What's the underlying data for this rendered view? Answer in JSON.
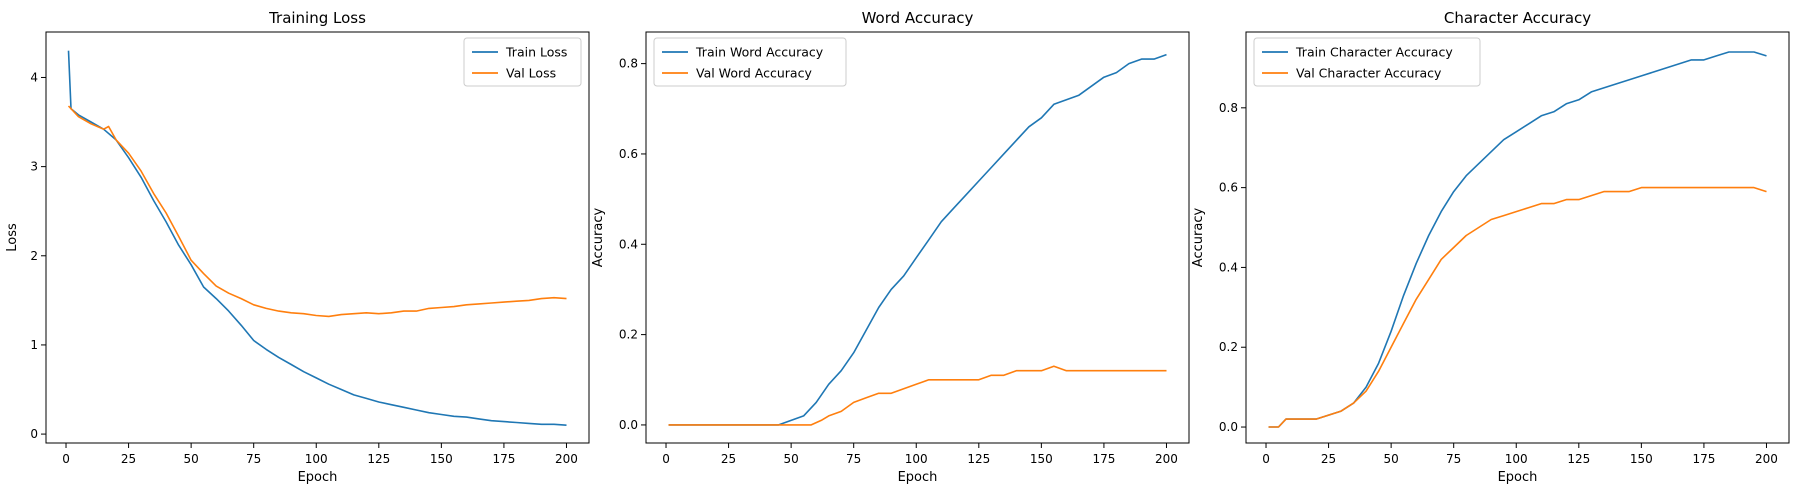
{
  "colors": {
    "train": "#1f77b4",
    "val": "#ff7f0e"
  },
  "chart_data": [
    {
      "type": "line",
      "title": "Training Loss",
      "xlabel": "Epoch",
      "ylabel": "Loss",
      "xlim": [
        -8,
        209
      ],
      "ylim": [
        -0.1,
        4.51
      ],
      "xticks": [
        0,
        25,
        50,
        75,
        100,
        125,
        150,
        175,
        200
      ],
      "yticks": [
        0,
        1,
        2,
        3,
        4
      ],
      "legend": "top-right",
      "series": [
        {
          "name": "Train Loss",
          "color": "#1f77b4",
          "points": [
            [
              1,
              4.3
            ],
            [
              2,
              3.65
            ],
            [
              5,
              3.58
            ],
            [
              10,
              3.5
            ],
            [
              15,
              3.42
            ],
            [
              20,
              3.3
            ],
            [
              25,
              3.1
            ],
            [
              30,
              2.88
            ],
            [
              35,
              2.62
            ],
            [
              40,
              2.38
            ],
            [
              45,
              2.12
            ],
            [
              50,
              1.9
            ],
            [
              55,
              1.65
            ],
            [
              60,
              1.52
            ],
            [
              65,
              1.38
            ],
            [
              70,
              1.22
            ],
            [
              75,
              1.05
            ],
            [
              80,
              0.95
            ],
            [
              85,
              0.86
            ],
            [
              90,
              0.78
            ],
            [
              95,
              0.7
            ],
            [
              100,
              0.63
            ],
            [
              105,
              0.56
            ],
            [
              110,
              0.5
            ],
            [
              115,
              0.44
            ],
            [
              120,
              0.4
            ],
            [
              125,
              0.36
            ],
            [
              130,
              0.33
            ],
            [
              135,
              0.3
            ],
            [
              140,
              0.27
            ],
            [
              145,
              0.24
            ],
            [
              150,
              0.22
            ],
            [
              155,
              0.2
            ],
            [
              160,
              0.19
            ],
            [
              165,
              0.17
            ],
            [
              170,
              0.15
            ],
            [
              175,
              0.14
            ],
            [
              180,
              0.13
            ],
            [
              185,
              0.12
            ],
            [
              190,
              0.11
            ],
            [
              195,
              0.11
            ],
            [
              200,
              0.1
            ]
          ]
        },
        {
          "name": "Val Loss",
          "color": "#ff7f0e",
          "points": [
            [
              1,
              3.68
            ],
            [
              5,
              3.56
            ],
            [
              10,
              3.48
            ],
            [
              15,
              3.42
            ],
            [
              17,
              3.45
            ],
            [
              20,
              3.3
            ],
            [
              25,
              3.15
            ],
            [
              30,
              2.95
            ],
            [
              35,
              2.7
            ],
            [
              40,
              2.48
            ],
            [
              45,
              2.22
            ],
            [
              50,
              1.95
            ],
            [
              55,
              1.8
            ],
            [
              60,
              1.66
            ],
            [
              65,
              1.58
            ],
            [
              70,
              1.52
            ],
            [
              75,
              1.45
            ],
            [
              80,
              1.41
            ],
            [
              85,
              1.38
            ],
            [
              90,
              1.36
            ],
            [
              95,
              1.35
            ],
            [
              100,
              1.33
            ],
            [
              105,
              1.32
            ],
            [
              110,
              1.34
            ],
            [
              115,
              1.35
            ],
            [
              120,
              1.36
            ],
            [
              125,
              1.35
            ],
            [
              130,
              1.36
            ],
            [
              135,
              1.38
            ],
            [
              140,
              1.38
            ],
            [
              145,
              1.41
            ],
            [
              150,
              1.42
            ],
            [
              155,
              1.43
            ],
            [
              160,
              1.45
            ],
            [
              165,
              1.46
            ],
            [
              170,
              1.47
            ],
            [
              175,
              1.48
            ],
            [
              180,
              1.49
            ],
            [
              185,
              1.5
            ],
            [
              190,
              1.52
            ],
            [
              195,
              1.53
            ],
            [
              200,
              1.52
            ]
          ]
        }
      ]
    },
    {
      "type": "line",
      "title": "Word Accuracy",
      "xlabel": "Epoch",
      "ylabel": "Accuracy",
      "xlim": [
        -8,
        209
      ],
      "ylim": [
        -0.04,
        0.87
      ],
      "xticks": [
        0,
        25,
        50,
        75,
        100,
        125,
        150,
        175,
        200
      ],
      "yticks": [
        0.0,
        0.2,
        0.4,
        0.6,
        0.8
      ],
      "legend": "top-left",
      "series": [
        {
          "name": "Train Word Accuracy",
          "color": "#1f77b4",
          "points": [
            [
              1,
              0
            ],
            [
              45,
              0
            ],
            [
              50,
              0.01
            ],
            [
              55,
              0.02
            ],
            [
              60,
              0.05
            ],
            [
              65,
              0.09
            ],
            [
              70,
              0.12
            ],
            [
              75,
              0.16
            ],
            [
              80,
              0.21
            ],
            [
              85,
              0.26
            ],
            [
              90,
              0.3
            ],
            [
              95,
              0.33
            ],
            [
              100,
              0.37
            ],
            [
              105,
              0.41
            ],
            [
              110,
              0.45
            ],
            [
              115,
              0.48
            ],
            [
              120,
              0.51
            ],
            [
              125,
              0.54
            ],
            [
              130,
              0.57
            ],
            [
              135,
              0.6
            ],
            [
              140,
              0.63
            ],
            [
              145,
              0.66
            ],
            [
              150,
              0.68
            ],
            [
              155,
              0.71
            ],
            [
              160,
              0.72
            ],
            [
              165,
              0.73
            ],
            [
              170,
              0.75
            ],
            [
              175,
              0.77
            ],
            [
              180,
              0.78
            ],
            [
              185,
              0.8
            ],
            [
              190,
              0.81
            ],
            [
              195,
              0.81
            ],
            [
              200,
              0.82
            ]
          ]
        },
        {
          "name": "Val Word Accuracy",
          "color": "#ff7f0e",
          "points": [
            [
              1,
              0
            ],
            [
              58,
              0
            ],
            [
              62,
              0.01
            ],
            [
              65,
              0.02
            ],
            [
              70,
              0.03
            ],
            [
              75,
              0.05
            ],
            [
              80,
              0.06
            ],
            [
              85,
              0.07
            ],
            [
              90,
              0.07
            ],
            [
              95,
              0.08
            ],
            [
              100,
              0.09
            ],
            [
              105,
              0.1
            ],
            [
              110,
              0.1
            ],
            [
              115,
              0.1
            ],
            [
              120,
              0.1
            ],
            [
              125,
              0.1
            ],
            [
              130,
              0.11
            ],
            [
              135,
              0.11
            ],
            [
              140,
              0.12
            ],
            [
              145,
              0.12
            ],
            [
              150,
              0.12
            ],
            [
              155,
              0.13
            ],
            [
              160,
              0.12
            ],
            [
              165,
              0.12
            ],
            [
              170,
              0.12
            ],
            [
              175,
              0.12
            ],
            [
              180,
              0.12
            ],
            [
              185,
              0.12
            ],
            [
              190,
              0.12
            ],
            [
              195,
              0.12
            ],
            [
              200,
              0.12
            ]
          ]
        }
      ]
    },
    {
      "type": "line",
      "title": "Character Accuracy",
      "xlabel": "Epoch",
      "ylabel": "Accuracy",
      "xlim": [
        -8,
        209
      ],
      "ylim": [
        -0.04,
        0.99
      ],
      "xticks": [
        0,
        25,
        50,
        75,
        100,
        125,
        150,
        175,
        200
      ],
      "yticks": [
        0.0,
        0.2,
        0.4,
        0.6,
        0.8
      ],
      "legend": "top-left",
      "series": [
        {
          "name": "Train Character Accuracy",
          "color": "#1f77b4",
          "points": [
            [
              1,
              0
            ],
            [
              5,
              0
            ],
            [
              8,
              0.02
            ],
            [
              10,
              0.02
            ],
            [
              15,
              0.02
            ],
            [
              20,
              0.02
            ],
            [
              25,
              0.03
            ],
            [
              30,
              0.04
            ],
            [
              35,
              0.06
            ],
            [
              40,
              0.1
            ],
            [
              45,
              0.16
            ],
            [
              50,
              0.24
            ],
            [
              55,
              0.33
            ],
            [
              60,
              0.41
            ],
            [
              65,
              0.48
            ],
            [
              70,
              0.54
            ],
            [
              75,
              0.59
            ],
            [
              80,
              0.63
            ],
            [
              85,
              0.66
            ],
            [
              90,
              0.69
            ],
            [
              95,
              0.72
            ],
            [
              100,
              0.74
            ],
            [
              105,
              0.76
            ],
            [
              110,
              0.78
            ],
            [
              115,
              0.79
            ],
            [
              120,
              0.81
            ],
            [
              125,
              0.82
            ],
            [
              130,
              0.84
            ],
            [
              135,
              0.85
            ],
            [
              140,
              0.86
            ],
            [
              145,
              0.87
            ],
            [
              150,
              0.88
            ],
            [
              155,
              0.89
            ],
            [
              160,
              0.9
            ],
            [
              165,
              0.91
            ],
            [
              170,
              0.92
            ],
            [
              175,
              0.92
            ],
            [
              180,
              0.93
            ],
            [
              185,
              0.94
            ],
            [
              190,
              0.94
            ],
            [
              195,
              0.94
            ],
            [
              200,
              0.93
            ]
          ]
        },
        {
          "name": "Val Character Accuracy",
          "color": "#ff7f0e",
          "points": [
            [
              1,
              0
            ],
            [
              5,
              0
            ],
            [
              8,
              0.02
            ],
            [
              10,
              0.02
            ],
            [
              15,
              0.02
            ],
            [
              20,
              0.02
            ],
            [
              25,
              0.03
            ],
            [
              30,
              0.04
            ],
            [
              35,
              0.06
            ],
            [
              40,
              0.09
            ],
            [
              45,
              0.14
            ],
            [
              50,
              0.2
            ],
            [
              55,
              0.26
            ],
            [
              60,
              0.32
            ],
            [
              65,
              0.37
            ],
            [
              70,
              0.42
            ],
            [
              75,
              0.45
            ],
            [
              80,
              0.48
            ],
            [
              85,
              0.5
            ],
            [
              90,
              0.52
            ],
            [
              95,
              0.53
            ],
            [
              100,
              0.54
            ],
            [
              105,
              0.55
            ],
            [
              110,
              0.56
            ],
            [
              115,
              0.56
            ],
            [
              120,
              0.57
            ],
            [
              125,
              0.57
            ],
            [
              130,
              0.58
            ],
            [
              135,
              0.59
            ],
            [
              140,
              0.59
            ],
            [
              145,
              0.59
            ],
            [
              150,
              0.6
            ],
            [
              155,
              0.6
            ],
            [
              160,
              0.6
            ],
            [
              165,
              0.6
            ],
            [
              170,
              0.6
            ],
            [
              175,
              0.6
            ],
            [
              180,
              0.6
            ],
            [
              185,
              0.6
            ],
            [
              190,
              0.6
            ],
            [
              195,
              0.6
            ],
            [
              200,
              0.59
            ]
          ]
        }
      ]
    }
  ]
}
